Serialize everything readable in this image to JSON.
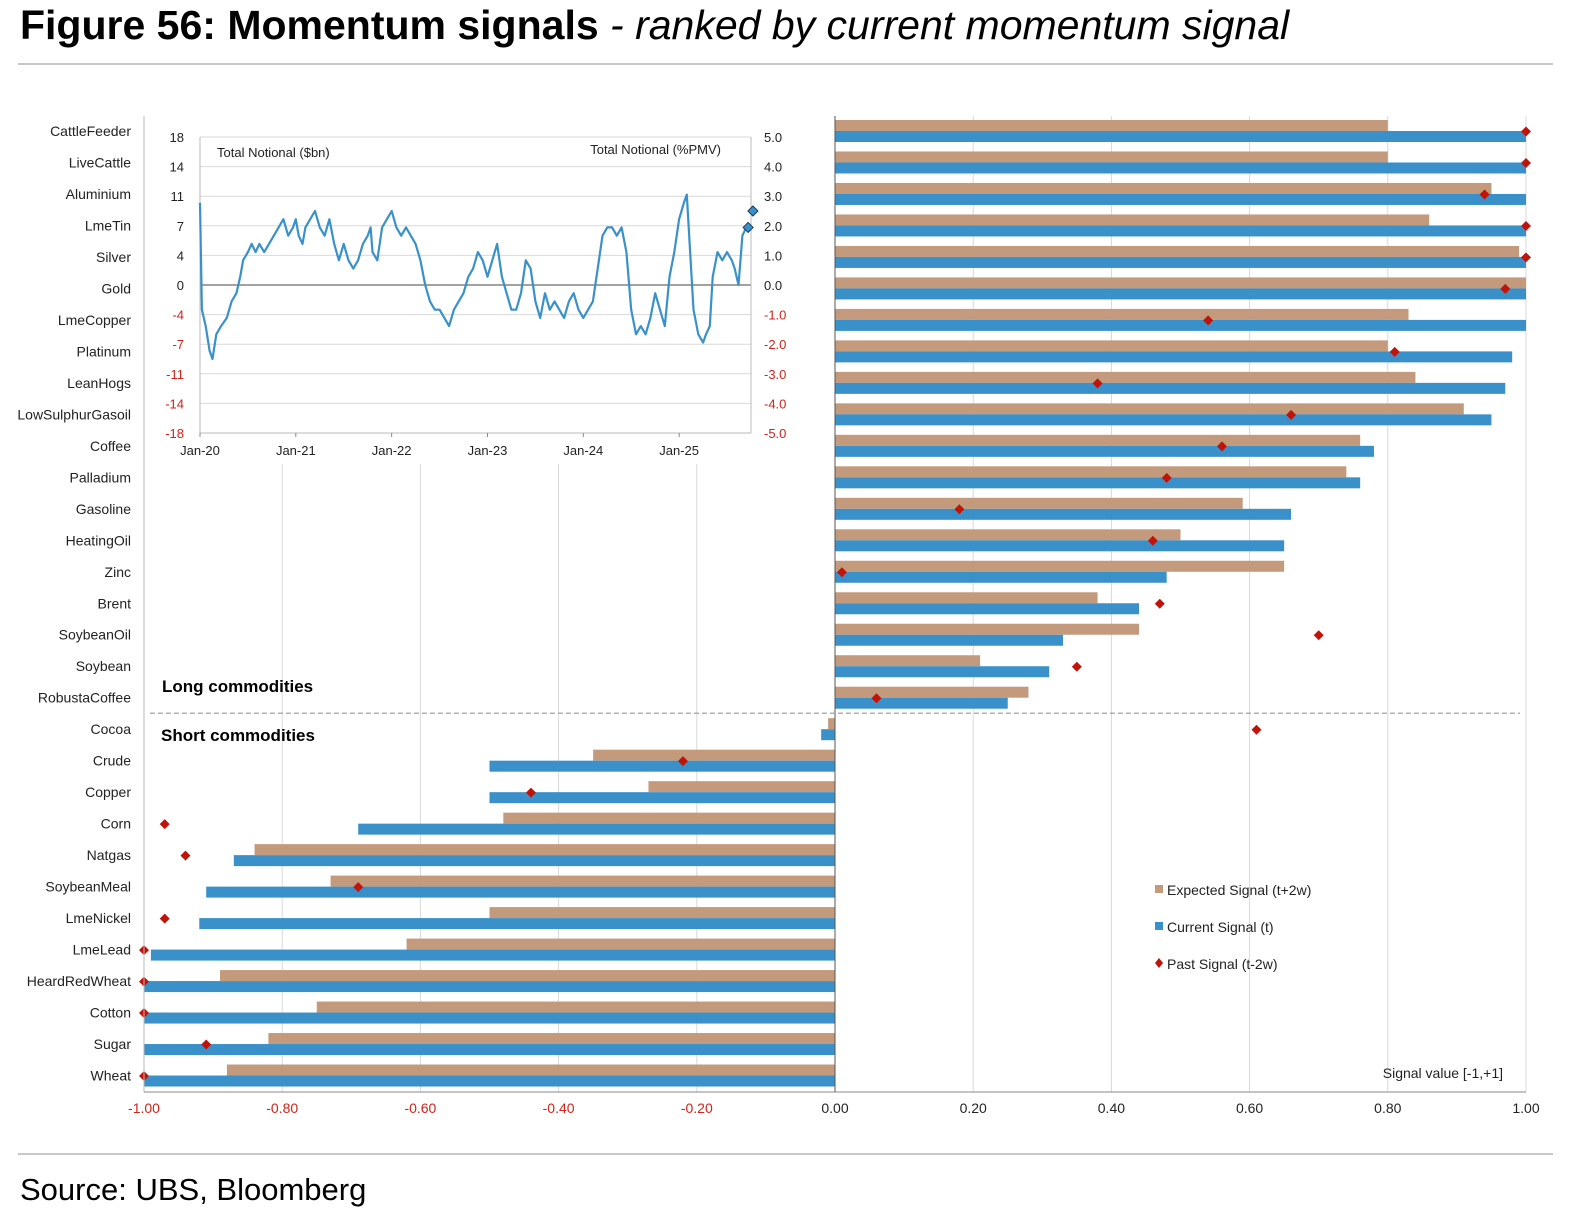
{
  "header": {
    "title_bold": "Figure 56: Momentum signals",
    "title_italic": " - ranked by current momentum signal"
  },
  "footer": {
    "source": "Source: UBS, Bloomberg"
  },
  "colors": {
    "expected": "#c49a7c",
    "current": "#3a91c9",
    "past": "#c0140a",
    "negative_tick": "#d0231a",
    "grid": "#d9d9d9"
  },
  "chart_data": [
    {
      "type": "bar",
      "orientation": "horizontal",
      "title": "",
      "xlabel": "Signal value [-1,+1]",
      "xlim": [
        -1,
        1
      ],
      "xticks": [
        -1.0,
        -0.8,
        -0.6,
        -0.4,
        -0.2,
        0.0,
        0.2,
        0.4,
        0.6,
        0.8,
        1.0
      ],
      "xtick_labels": [
        "-1.00",
        "-0.80",
        "-0.60",
        "-0.40",
        "-0.20",
        "0.00",
        "0.20",
        "0.40",
        "0.60",
        "0.80",
        "1.00"
      ],
      "categories": [
        "CattleFeeder",
        "LiveCattle",
        "Aluminium",
        "LmeTin",
        "Silver",
        "Gold",
        "LmeCopper",
        "Platinum",
        "LeanHogs",
        "LowSulphurGasoil",
        "Coffee",
        "Palladium",
        "Gasoline",
        "HeatingOil",
        "Zinc",
        "Brent",
        "SoybeanOil",
        "Soybean",
        "RobustaCoffee",
        "Cocoa",
        "Crude",
        "Copper",
        "Corn",
        "Natgas",
        "SoybeanMeal",
        "LmeNickel",
        "LmeLead",
        "HeardRedWheat",
        "Cotton",
        "Sugar",
        "Wheat"
      ],
      "series": [
        {
          "name": "Expected Signal (t+2w)",
          "values": [
            0.8,
            0.8,
            0.95,
            0.86,
            0.99,
            1.0,
            0.83,
            0.8,
            0.84,
            0.91,
            0.76,
            0.74,
            0.59,
            0.5,
            0.65,
            0.38,
            0.44,
            0.21,
            0.28,
            -0.01,
            -0.35,
            -0.27,
            -0.48,
            -0.84,
            -0.73,
            -0.5,
            -0.62,
            -0.89,
            -0.75,
            -0.82,
            -0.88
          ]
        },
        {
          "name": "Current Signal (t)",
          "values": [
            1.0,
            1.0,
            1.0,
            1.0,
            1.0,
            1.0,
            1.0,
            0.98,
            0.97,
            0.95,
            0.78,
            0.76,
            0.66,
            0.65,
            0.48,
            0.44,
            0.33,
            0.31,
            0.25,
            -0.02,
            -0.5,
            -0.5,
            -0.69,
            -0.87,
            -0.91,
            -0.92,
            -0.99,
            -1.0,
            -1.0,
            -1.0,
            -1.0
          ]
        },
        {
          "name": "Past Signal (t-2w)",
          "values": [
            1.0,
            1.0,
            0.94,
            1.0,
            1.0,
            0.97,
            0.54,
            0.81,
            0.38,
            0.66,
            0.56,
            0.48,
            0.18,
            0.46,
            0.01,
            0.47,
            0.7,
            0.35,
            0.06,
            0.61,
            -0.22,
            -0.44,
            -0.97,
            -0.94,
            -0.69,
            -0.97,
            -1.0,
            -1.0,
            -1.0,
            -0.91,
            -1.0
          ]
        }
      ],
      "annotations": {
        "long_label": "Long commodities",
        "short_label": "Short commodities",
        "split_after": "RobustaCoffee"
      },
      "legend": {
        "placement": "bottom-right",
        "entries": [
          "Expected Signal (t+2w)",
          "Current Signal (t)",
          "Past Signal (t-2w)"
        ]
      }
    },
    {
      "type": "line",
      "title": "",
      "left_axis_label": "Total Notional ($bn)",
      "right_axis_label": "Total Notional (%PMV)",
      "xlabels": [
        "Jan-20",
        "Jan-21",
        "Jan-22",
        "Jan-23",
        "Jan-24",
        "Jan-25"
      ],
      "left_ylim": [
        -18,
        18
      ],
      "left_yticks": [
        18,
        14,
        11,
        7,
        4,
        0,
        -4,
        -7,
        -11,
        -14,
        -18
      ],
      "right_ylim": [
        -5,
        5
      ],
      "right_yticks": [
        "5.0",
        "4.0",
        "3.0",
        "2.0",
        "1.0",
        "0.0",
        "-1.0",
        "-2.0",
        "-3.0",
        "-4.0",
        "-5.0"
      ],
      "x_range": [
        0,
        5.75
      ],
      "series": [
        {
          "name": "Total Notional",
          "points": [
            [
              0.0,
              10
            ],
            [
              0.02,
              -3
            ],
            [
              0.06,
              -5
            ],
            [
              0.1,
              -8
            ],
            [
              0.13,
              -9
            ],
            [
              0.17,
              -6
            ],
            [
              0.22,
              -5
            ],
            [
              0.28,
              -4
            ],
            [
              0.33,
              -2
            ],
            [
              0.38,
              -1
            ],
            [
              0.42,
              1
            ],
            [
              0.45,
              3
            ],
            [
              0.5,
              4
            ],
            [
              0.54,
              5
            ],
            [
              0.58,
              4
            ],
            [
              0.62,
              5
            ],
            [
              0.67,
              4
            ],
            [
              0.72,
              5
            ],
            [
              0.77,
              6
            ],
            [
              0.82,
              7
            ],
            [
              0.87,
              8
            ],
            [
              0.92,
              6
            ],
            [
              0.97,
              7
            ],
            [
              1.0,
              8
            ],
            [
              1.03,
              6
            ],
            [
              1.07,
              5
            ],
            [
              1.1,
              7
            ],
            [
              1.15,
              8
            ],
            [
              1.2,
              9
            ],
            [
              1.25,
              7
            ],
            [
              1.3,
              6
            ],
            [
              1.35,
              8
            ],
            [
              1.4,
              5
            ],
            [
              1.45,
              3
            ],
            [
              1.5,
              5
            ],
            [
              1.55,
              3
            ],
            [
              1.6,
              2
            ],
            [
              1.65,
              3
            ],
            [
              1.7,
              5
            ],
            [
              1.75,
              6
            ],
            [
              1.78,
              7
            ],
            [
              1.8,
              4
            ],
            [
              1.85,
              3
            ],
            [
              1.9,
              7
            ],
            [
              1.95,
              8
            ],
            [
              2.0,
              9
            ],
            [
              2.05,
              7
            ],
            [
              2.1,
              6
            ],
            [
              2.15,
              7
            ],
            [
              2.2,
              6
            ],
            [
              2.25,
              5
            ],
            [
              2.3,
              3
            ],
            [
              2.35,
              0
            ],
            [
              2.4,
              -2
            ],
            [
              2.45,
              -3
            ],
            [
              2.5,
              -3
            ],
            [
              2.55,
              -4
            ],
            [
              2.6,
              -5
            ],
            [
              2.65,
              -3
            ],
            [
              2.7,
              -2
            ],
            [
              2.75,
              -1
            ],
            [
              2.8,
              1
            ],
            [
              2.85,
              2
            ],
            [
              2.9,
              4
            ],
            [
              2.95,
              3
            ],
            [
              3.0,
              1
            ],
            [
              3.05,
              3
            ],
            [
              3.1,
              5
            ],
            [
              3.15,
              1
            ],
            [
              3.2,
              -1
            ],
            [
              3.25,
              -3
            ],
            [
              3.3,
              -3
            ],
            [
              3.35,
              -1
            ],
            [
              3.4,
              3
            ],
            [
              3.45,
              2
            ],
            [
              3.5,
              -2
            ],
            [
              3.55,
              -4
            ],
            [
              3.6,
              -1
            ],
            [
              3.65,
              -3
            ],
            [
              3.7,
              -2
            ],
            [
              3.75,
              -3
            ],
            [
              3.8,
              -4
            ],
            [
              3.85,
              -2
            ],
            [
              3.9,
              -1
            ],
            [
              3.95,
              -3
            ],
            [
              4.0,
              -4
            ],
            [
              4.05,
              -3
            ],
            [
              4.1,
              -2
            ],
            [
              4.15,
              2
            ],
            [
              4.2,
              6
            ],
            [
              4.25,
              7
            ],
            [
              4.3,
              7
            ],
            [
              4.35,
              6
            ],
            [
              4.4,
              7
            ],
            [
              4.45,
              4
            ],
            [
              4.5,
              -3
            ],
            [
              4.55,
              -6
            ],
            [
              4.6,
              -5
            ],
            [
              4.65,
              -6
            ],
            [
              4.7,
              -4
            ],
            [
              4.75,
              -1
            ],
            [
              4.8,
              -3
            ],
            [
              4.85,
              -5
            ],
            [
              4.9,
              1
            ],
            [
              4.95,
              4
            ],
            [
              5.0,
              8
            ],
            [
              5.05,
              10
            ],
            [
              5.08,
              11
            ],
            [
              5.1,
              7
            ],
            [
              5.15,
              -3
            ],
            [
              5.2,
              -6
            ],
            [
              5.25,
              -7
            ],
            [
              5.28,
              -6
            ],
            [
              5.32,
              -5
            ],
            [
              5.35,
              1
            ],
            [
              5.4,
              4
            ],
            [
              5.45,
              3
            ],
            [
              5.5,
              4
            ],
            [
              5.55,
              3
            ],
            [
              5.58,
              2
            ],
            [
              5.62,
              0
            ],
            [
              5.66,
              6
            ],
            [
              5.7,
              7
            ]
          ]
        },
        {
          "name": "current-markers",
          "points": [
            [
              5.72,
              7
            ],
            [
              5.77,
              9
            ]
          ]
        }
      ]
    }
  ]
}
